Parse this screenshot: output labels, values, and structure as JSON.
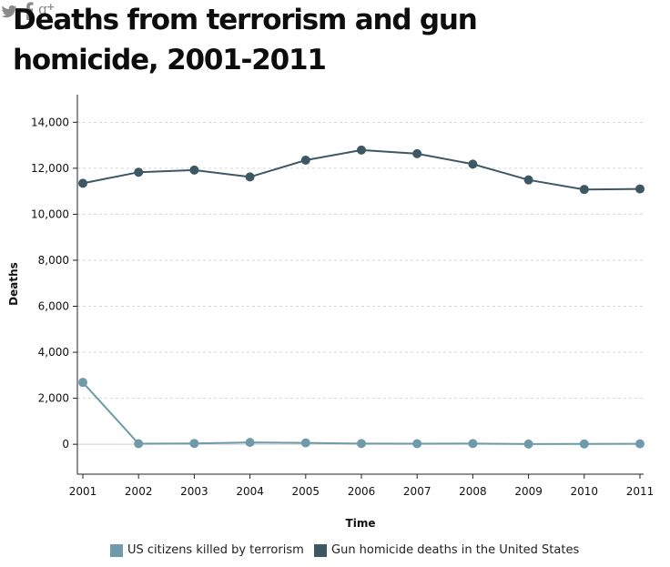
{
  "title": "Deaths from terrorism and gun homicide, 2001-2011",
  "share": {
    "twitter": "twitter-icon",
    "facebook": "facebook-icon",
    "google_plus": "google-plus-icon"
  },
  "colors": {
    "terrorism": "#6f9aaa",
    "gun": "#3d5765",
    "icons": "#8a8a8a"
  },
  "chart_data": {
    "type": "line",
    "title": "Deaths from terrorism and gun homicide, 2001-2011",
    "xlabel": "Time",
    "ylabel": "Deaths",
    "x": [
      "2001",
      "2002",
      "2003",
      "2004",
      "2005",
      "2006",
      "2007",
      "2008",
      "2009",
      "2010",
      "2011"
    ],
    "ylim": [
      -1300,
      15200
    ],
    "yticks": [
      0,
      2000,
      4000,
      6000,
      8000,
      10000,
      12000,
      14000
    ],
    "ytick_labels": [
      "0",
      "2,000",
      "4,000",
      "6,000",
      "8,000",
      "10,000",
      "12,000",
      "14,000"
    ],
    "grid": "horizontal dashed",
    "legend_position": "bottom",
    "series": [
      {
        "name": "US citizens killed by terrorism",
        "color": "#6f9aaa",
        "values": [
          2689,
          25,
          35,
          80,
          60,
          30,
          25,
          30,
          10,
          15,
          20
        ]
      },
      {
        "name": "Gun homicide deaths in the United States",
        "color": "#3d5765",
        "values": [
          11348,
          11829,
          11920,
          11624,
          12352,
          12791,
          12632,
          12179,
          11493,
          11078,
          11101
        ]
      }
    ]
  }
}
